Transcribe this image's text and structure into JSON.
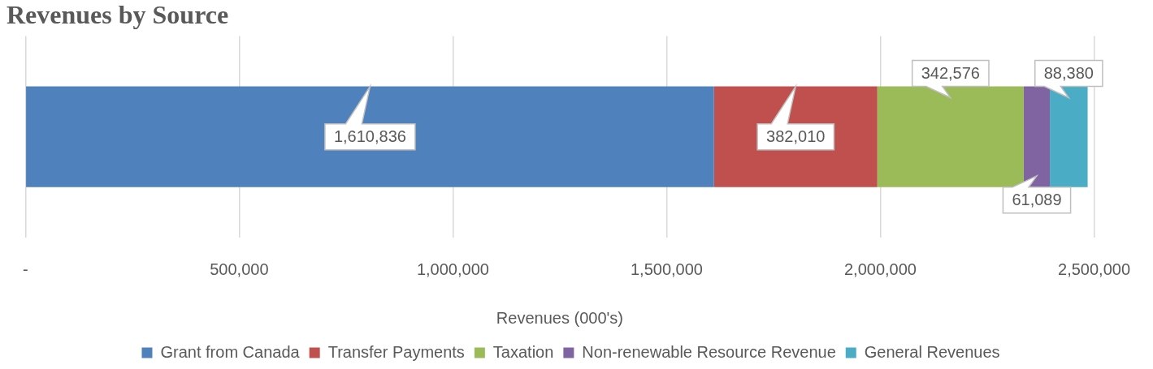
{
  "chart_data": {
    "type": "bar",
    "title": "Revenues by Source",
    "orientation": "horizontal",
    "stacked": true,
    "categories": [
      null
    ],
    "series": [
      {
        "name": "Grant from Canada",
        "color": "#4f81bd",
        "values": [
          1610836
        ],
        "value_labels": [
          "1,610,836"
        ]
      },
      {
        "name": "Transfer Payments",
        "color": "#c0504d",
        "values": [
          382010
        ],
        "value_labels": [
          "382,010"
        ]
      },
      {
        "name": "Taxation",
        "color": "#9bbb59",
        "values": [
          342576
        ],
        "value_labels": [
          "342,576"
        ]
      },
      {
        "name": "Non-renewable Resource Revenue",
        "color": "#8064a2",
        "values": [
          61089
        ],
        "value_labels": [
          "61,089"
        ]
      },
      {
        "name": "General Revenues",
        "color": "#4bacc6",
        "values": [
          88380
        ],
        "value_labels": [
          "88,380"
        ]
      }
    ],
    "xlabel": "Revenues (000's)",
    "xlim": [
      0,
      2500000
    ],
    "xticks": [
      {
        "value": 0,
        "label": "-"
      },
      {
        "value": 500000,
        "label": "500,000"
      },
      {
        "value": 1000000,
        "label": "1,000,000"
      },
      {
        "value": 1500000,
        "label": "1,500,000"
      },
      {
        "value": 2000000,
        "label": "2,000,000"
      },
      {
        "value": 2500000,
        "label": "2,500,000"
      }
    ],
    "grid": "x",
    "legend": "bottom"
  }
}
